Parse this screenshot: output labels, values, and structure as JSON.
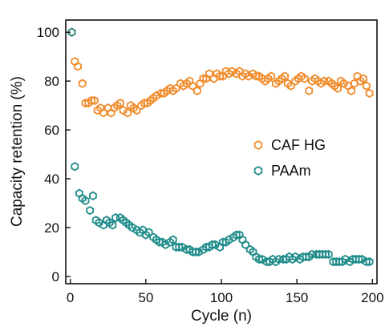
{
  "chart_data": {
    "type": "scatter",
    "title": "",
    "xlabel": "Cycle (n)",
    "ylabel": "Capacity retention (%)",
    "xlim": [
      -3,
      203
    ],
    "ylim": [
      -3,
      105
    ],
    "xticks": [
      0,
      50,
      100,
      150,
      200
    ],
    "yticks": [
      0,
      20,
      40,
      60,
      80,
      100
    ],
    "grid": false,
    "legend_position": "center-right",
    "marker": "hexagon-open",
    "series": [
      {
        "name": "CAF HG",
        "color": "#F08C2C",
        "x": [
          1,
          3,
          5,
          8,
          10,
          12,
          14,
          16,
          18,
          20,
          22,
          25,
          27,
          29,
          31,
          33,
          35,
          38,
          40,
          42,
          44,
          47,
          49,
          51,
          53,
          55,
          57,
          60,
          62,
          64,
          66,
          68,
          70,
          73,
          75,
          77,
          79,
          81,
          84,
          86,
          88,
          90,
          92,
          95,
          97,
          99,
          101,
          103,
          105,
          107,
          110,
          112,
          114,
          116,
          118,
          121,
          123,
          125,
          127,
          129,
          131,
          133,
          136,
          138,
          140,
          142,
          144,
          146,
          149,
          151,
          153,
          155,
          158,
          160,
          162,
          164,
          166,
          168,
          171,
          173,
          175,
          177,
          179,
          181,
          184,
          186,
          188,
          190,
          192,
          194,
          196,
          198
        ],
        "y": [
          100,
          88,
          86,
          79,
          71,
          71,
          72,
          72,
          68,
          69,
          67,
          69,
          67,
          69,
          70,
          71,
          68,
          67,
          70,
          69,
          68,
          70,
          71,
          71,
          72,
          73,
          74,
          75,
          75,
          76,
          77,
          76,
          77,
          79,
          78,
          79,
          80,
          78,
          76,
          79,
          81,
          81,
          83,
          81,
          83,
          82,
          82,
          84,
          83,
          84,
          83,
          84,
          82,
          83,
          82,
          83,
          82,
          82,
          81,
          80,
          81,
          82,
          79,
          80,
          81,
          82,
          79,
          78,
          80,
          81,
          82,
          81,
          76,
          80,
          81,
          80,
          79,
          80,
          80,
          79,
          78,
          77,
          80,
          79,
          78,
          76,
          79,
          82,
          80,
          81,
          78,
          75
        ]
      },
      {
        "name": "PAAm",
        "color": "#1F8C8A",
        "x": [
          1,
          3,
          6,
          8,
          10,
          13,
          15,
          17,
          19,
          22,
          24,
          26,
          28,
          30,
          33,
          35,
          37,
          39,
          41,
          44,
          46,
          48,
          50,
          52,
          55,
          57,
          59,
          61,
          63,
          66,
          68,
          70,
          72,
          74,
          77,
          79,
          81,
          83,
          85,
          88,
          90,
          92,
          94,
          96,
          99,
          101,
          103,
          105,
          108,
          110,
          112,
          114,
          116,
          119,
          121,
          123,
          125,
          127,
          130,
          132,
          134,
          136,
          138,
          141,
          143,
          145,
          147,
          149,
          152,
          154,
          156,
          158,
          160,
          163,
          165,
          167,
          169,
          171,
          174,
          176,
          178,
          180,
          182,
          185,
          187,
          189,
          191,
          193,
          196,
          198
        ],
        "y": [
          100,
          45,
          34,
          32,
          31,
          27,
          33,
          23,
          22,
          21,
          23,
          22,
          21,
          24,
          24,
          23,
          22,
          21,
          20,
          19,
          18,
          19,
          17,
          18,
          16,
          15,
          14,
          14,
          13,
          14,
          15,
          12,
          12,
          12,
          11,
          11,
          10,
          10,
          10,
          11,
          12,
          12,
          13,
          13,
          12,
          14,
          14,
          15,
          16,
          17,
          17,
          15,
          13,
          11,
          10,
          8,
          7,
          7,
          6,
          6,
          7,
          6,
          7,
          7,
          7,
          8,
          7,
          8,
          7,
          8,
          8,
          8,
          9,
          9,
          9,
          9,
          9,
          9,
          6,
          6,
          6,
          6,
          7,
          6,
          7,
          7,
          7,
          7,
          6,
          6
        ]
      }
    ]
  }
}
